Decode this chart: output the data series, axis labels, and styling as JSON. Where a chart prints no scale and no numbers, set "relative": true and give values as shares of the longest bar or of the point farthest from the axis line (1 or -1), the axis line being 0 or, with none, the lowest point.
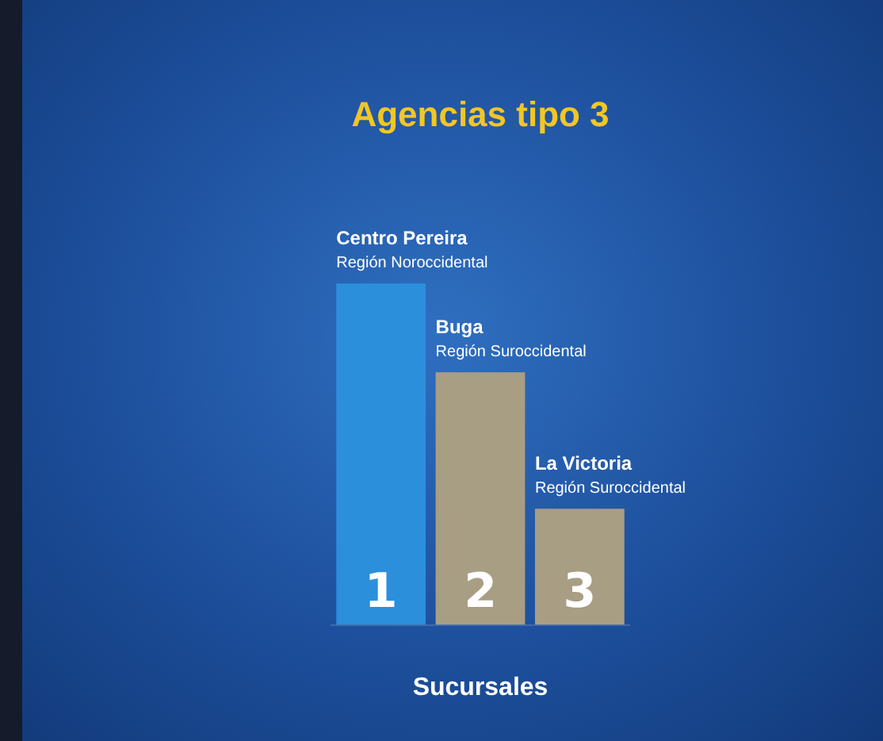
{
  "chart_data": {
    "type": "bar",
    "title": "Agencias tipo 3",
    "xlabel": "Sucursales",
    "relative": true,
    "categories": [
      "1",
      "2",
      "3"
    ],
    "values": [
      1,
      0.74,
      0.34
    ],
    "colors": [
      "#2b8fdc",
      "#a89e84",
      "#a89e84"
    ],
    "annotations": [
      {
        "text": "Centro Pereira\nRegión Noroccidental",
        "x": "1",
        "y": 1
      },
      {
        "text": "Buga\nRegión Suroccidental",
        "x": "2",
        "y": 0.74
      },
      {
        "text": "La Victoria\nRegión Suroccidental",
        "x": "3",
        "y": 0.34
      }
    ],
    "grid": false,
    "legend": false
  }
}
